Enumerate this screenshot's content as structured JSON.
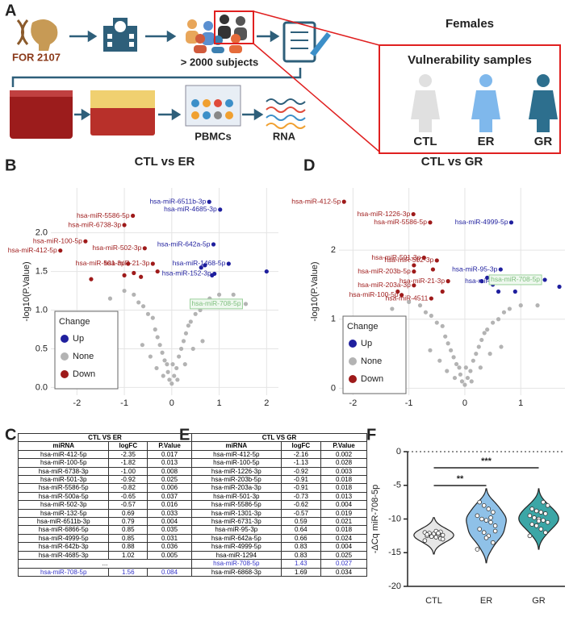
{
  "panels": [
    "A",
    "B",
    "C",
    "D",
    "E",
    "F"
  ],
  "diagram": {
    "cohort": "FOR 2107",
    "subjects": "> 2000 subjects",
    "pbmcs": "PBMCs",
    "rna": "RNA",
    "females": "Females",
    "vulnerability": "Vulnerability samples",
    "groups": [
      "CTL",
      "ER",
      "GR"
    ]
  },
  "chart_data": [
    {
      "type": "scatter",
      "title": "CTL vs ER",
      "y_label": "-log10(P.Value)",
      "grid": true,
      "legend": "bottom-left",
      "legend_title": "Change",
      "xlim": [
        -2.55,
        2.25
      ],
      "xticks": [
        -2,
        -1,
        0,
        1,
        2
      ],
      "ylim": [
        -0.1,
        2.58
      ],
      "yticks": [
        {
          "value": 0,
          "label": "0.0"
        },
        0.5,
        {
          "value": 1,
          "label": "1.0"
        },
        1.5,
        {
          "value": 2,
          "label": "2.0"
        }
      ],
      "series": [
        {
          "name": "Up",
          "color": "#1f1f9e",
          "x": [
            0.79,
            1.02,
            0.88,
            1.2,
            0.7,
            0.62,
            0.9,
            2.0,
            0.85
          ],
          "values": [
            2.4,
            2.3,
            1.85,
            1.6,
            1.58,
            1.55,
            1.47,
            1.5,
            1.45
          ],
          "labels": [
            "hsa-miR-6511b-3p",
            "hsa-miR-4685-3p",
            "hsa-miR-642a-5p",
            "hsa-miR-1468-5p",
            null,
            null,
            "hsa-miR-152-3p",
            null,
            null
          ]
        },
        {
          "name": "None",
          "color": "#b3b3b3",
          "x": [
            0,
            0.05,
            -0.05,
            0.1,
            -0.1,
            0.15,
            -0.15,
            0.2,
            -0.2,
            0.25,
            -0.25,
            0.3,
            -0.3,
            0.35,
            -0.35,
            0.4,
            -0.4,
            0.5,
            -0.5,
            0.6,
            -0.6,
            0.7,
            -0.7,
            0.8,
            -0.8,
            1.0,
            -1.0,
            1.3,
            -1.3,
            0.02,
            -0.08,
            0.12,
            -0.18,
            0.28,
            -0.32,
            0.45,
            -0.45,
            0.65,
            -0.62,
            -1.6
          ],
          "values": [
            0.05,
            0.15,
            0.1,
            0.25,
            0.3,
            0.4,
            0.35,
            0.5,
            0.45,
            0.6,
            0.55,
            0.7,
            0.65,
            0.8,
            0.75,
            0.85,
            0.9,
            0.95,
            0.95,
            1.0,
            1.05,
            1.1,
            1.1,
            1.15,
            1.2,
            1.2,
            1.25,
            1.2,
            1.15,
            0.3,
            0.2,
            0.1,
            0.15,
            0.3,
            0.25,
            0.5,
            0.4,
            0.6,
            0.55,
            0.6
          ]
        },
        {
          "name": "Down",
          "color": "#9e1a1a",
          "x": [
            -0.82,
            -1.0,
            -1.82,
            -2.35,
            -0.57,
            -0.92,
            -0.4,
            -0.65,
            -1.7,
            -1.0,
            -0.8,
            -0.3
          ],
          "values": [
            2.22,
            2.1,
            1.89,
            1.77,
            1.8,
            1.6,
            1.6,
            1.43,
            1.4,
            1.45,
            1.48,
            1.5
          ],
          "labels": [
            "hsa-miR-5586-5p",
            "hsa-miR-6738-3p",
            "hsa-miR-100-5p",
            "hsa-miR-412-5p",
            "hsa-miR-502-3p",
            "hsa-miR-501-3p",
            "hsa-miR-21-3p",
            null,
            null,
            null,
            null,
            null
          ]
        }
      ],
      "highlight": {
        "label": "hsa-miR-708-5p",
        "x": 1.56,
        "y": 1.08,
        "color": "#b3b3b3"
      }
    },
    {
      "type": "scatter",
      "title": "CTL vs GR",
      "y_label": "-log10(P.Value)",
      "grid": true,
      "legend": "bottom-left",
      "legend_title": "Change",
      "xlim": [
        -2.25,
        1.79
      ],
      "xticks": [
        -2,
        -1,
        0,
        1
      ],
      "ylim": [
        -0.1,
        2.9
      ],
      "yticks": [
        0,
        1,
        2
      ],
      "series": [
        {
          "name": "Up",
          "color": "#1f1f9e",
          "x": [
            0.83,
            0.64,
            0.83,
            0.4,
            0.5,
            0.6,
            0.3,
            1.69,
            0.9
          ],
          "values": [
            2.4,
            1.72,
            1.55,
            1.6,
            1.5,
            1.4,
            1.55,
            1.47,
            1.4
          ],
          "labels": [
            "hsa-miR-4999-5p",
            "hsa-miR-95-3p",
            "hsa-miR-1294",
            null,
            null,
            null,
            null,
            null,
            null
          ]
        },
        {
          "name": "None",
          "color": "#b3b3b3",
          "x": [
            0,
            0.05,
            -0.05,
            0.1,
            -0.1,
            0.15,
            -0.15,
            0.2,
            -0.2,
            0.25,
            -0.25,
            0.3,
            -0.3,
            0.35,
            -0.35,
            0.4,
            -0.4,
            0.5,
            -0.5,
            0.6,
            -0.6,
            0.7,
            -0.7,
            0.8,
            -0.8,
            1.0,
            -1.0,
            1.3,
            -1.3,
            0.02,
            -0.08,
            0.12,
            -0.18,
            0.28,
            -0.32,
            0.45,
            -0.45,
            0.65,
            -0.62,
            -1.6
          ],
          "values": [
            0.05,
            0.15,
            0.1,
            0.25,
            0.3,
            0.4,
            0.35,
            0.5,
            0.45,
            0.6,
            0.55,
            0.7,
            0.65,
            0.8,
            0.75,
            0.85,
            0.9,
            0.95,
            0.95,
            1.0,
            1.05,
            1.1,
            1.1,
            1.15,
            1.2,
            1.2,
            1.25,
            1.2,
            1.15,
            0.3,
            0.2,
            0.1,
            0.15,
            0.3,
            0.25,
            0.5,
            0.4,
            0.6,
            0.55,
            0.6
          ]
        },
        {
          "name": "Down",
          "color": "#9e1a1a",
          "x": [
            -2.16,
            -0.92,
            -0.62,
            -0.73,
            -0.5,
            -0.91,
            -0.91,
            -0.91,
            -0.3,
            -1.13,
            -0.57,
            -0.6,
            -1.2,
            -0.4
          ],
          "values": [
            2.7,
            2.52,
            2.4,
            1.89,
            1.85,
            1.69,
            1.78,
            1.49,
            1.55,
            1.35,
            1.72,
            1.3,
            1.4,
            1.4
          ],
          "labels": [
            "hsa-miR-412-5p",
            "hsa-miR-1226-3p",
            "hsa-miR-5586-5p",
            "hsa-miR-501-3p",
            "hsa-miR-502-3p",
            "hsa-miR-203b-5p",
            null,
            "hsa-miR-203a-3p",
            "hsa-miR-21-3p",
            "hsa-miR-100-5p",
            null,
            "hsa-miR-4511",
            null,
            null
          ]
        }
      ],
      "highlight": {
        "label": "hsa-miR-708-5p",
        "x": 1.43,
        "y": 1.57,
        "color": "#1f1f9e"
      }
    },
    {
      "type": "violin",
      "y_label": "-ΔCq miR-708-5p",
      "categories": [
        "CTL",
        "ER",
        "GR"
      ],
      "colors": [
        "#e6e6e6",
        "#8fc1e8",
        "#3ca6a6"
      ],
      "ylim": [
        -20,
        0
      ],
      "yticks": [
        0,
        -5,
        -10,
        -15,
        -20
      ],
      "values": [
        [
          -13.2,
          -12.9,
          -12.7,
          -12.6,
          -12.5,
          -12.4,
          -12.3,
          -12.2,
          -12.1,
          -12.0,
          -11.9,
          -11.8,
          -12.6,
          -12.3,
          -13.0,
          -12.1
        ],
        [
          -14.5,
          -13.5,
          -12.5,
          -12.0,
          -11.5,
          -11.0,
          -10.5,
          -10.2,
          -10.0,
          -9.5,
          -9.0,
          -8.5,
          -8.0,
          -7.5,
          -11.8,
          -9.8,
          -12.8
        ],
        [
          -12.5,
          -12.0,
          -11.5,
          -11.0,
          -10.8,
          -10.5,
          -10.2,
          -10.0,
          -9.8,
          -9.5,
          -9.2,
          -9.0,
          -8.8,
          -8.5,
          -8.0,
          -7.5,
          -10.3
        ]
      ],
      "significance": [
        {
          "text": "**",
          "groups": [
            "CTL",
            "ER"
          ]
        },
        {
          "text": "***",
          "groups": [
            "CTL",
            "GR"
          ]
        }
      ]
    }
  ],
  "tables": [
    {
      "title": "CTL VS ER",
      "columns": [
        "miRNA",
        "logFC",
        "P.Value"
      ],
      "rows": [
        [
          "hsa-miR-412-5p",
          "-2.35",
          "0.017"
        ],
        [
          "hsa-miR-100-5p",
          "-1.82",
          "0.013"
        ],
        [
          "hsa-miR-6738-3p",
          "-1.00",
          "0.008"
        ],
        [
          "hsa-miR-501-3p",
          "-0.92",
          "0.025"
        ],
        [
          "hsa-miR-5586-5p",
          "-0.82",
          "0.006"
        ],
        [
          "hsa-miR-500a-5p",
          "-0.65",
          "0.037"
        ],
        [
          "hsa-miR-502-3p",
          "-0.57",
          "0.016"
        ],
        [
          "hsa-miR-132-5p",
          "0.69",
          "0.033"
        ],
        [
          "hsa-miR-6511b-3p",
          "0.79",
          "0.004"
        ],
        [
          "hsa-miR-6866-5p",
          "0.85",
          "0.035"
        ],
        [
          "hsa-miR-4999-5p",
          "0.85",
          "0.031"
        ],
        [
          "hsa-miR-642b-3p",
          "0.88",
          "0.036"
        ],
        [
          "hsa-miR-4685-3p",
          "1.02",
          "0.005"
        ],
        [
          "..."
        ],
        {
          "cells": [
            "hsa-miR-708-5p",
            "1.56",
            "0.084"
          ],
          "color": "#3535c8"
        }
      ]
    },
    {
      "title": "CTL VS GR",
      "columns": [
        "miRNA",
        "logFC",
        "P.Value"
      ],
      "rows": [
        [
          "hsa-miR-412-5p",
          "-2.16",
          "0.002"
        ],
        [
          "hsa-miR-100-5p",
          "-1.13",
          "0.028"
        ],
        [
          "hsa-miR-1226-3p",
          "-0.92",
          "0.003"
        ],
        [
          "hsa-miR-203b-5p",
          "-0.91",
          "0.018"
        ],
        [
          "hsa-miR-203a-3p",
          "-0.91",
          "0.018"
        ],
        [
          "hsa-miR-501-3p",
          "-0.73",
          "0.013"
        ],
        [
          "hsa-miR-5586-5p",
          "-0.62",
          "0.004"
        ],
        [
          "hsa-miR-1301-3p",
          "-0.57",
          "0.019"
        ],
        [
          "hsa-miR-6731-3p",
          "0.59",
          "0.021"
        ],
        [
          "hsa-miR-95-3p",
          "0.64",
          "0.018"
        ],
        [
          "hsa-miR-642a-5p",
          "0.66",
          "0.024"
        ],
        [
          "hsa-miR-4999-5p",
          "0.83",
          "0.004"
        ],
        [
          "hsa-miR-1294",
          "0.83",
          "0.025"
        ],
        {
          "cells": [
            "hsa-miR-708-5p",
            "1.43",
            "0.027"
          ],
          "color": "#3535c8"
        },
        [
          "hsa-miR-6868-3p",
          "1.69",
          "0.034"
        ]
      ]
    }
  ]
}
